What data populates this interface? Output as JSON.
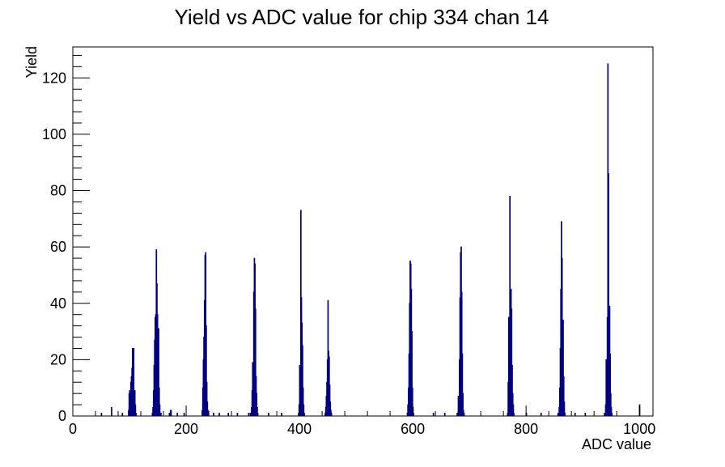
{
  "chart_data": {
    "type": "bar",
    "title": "Yield vs ADC value for chip 334 chan 14",
    "xlabel": "ADC value",
    "ylabel": "Yield",
    "xlim": [
      0,
      1024
    ],
    "ylim": [
      0,
      131
    ],
    "x_ticks": [
      0,
      200,
      400,
      600,
      800,
      1000
    ],
    "y_ticks": [
      0,
      20,
      40,
      60,
      80,
      100,
      120
    ],
    "series_color": "#000080",
    "grid": false,
    "legend": "none",
    "bins": [
      {
        "x": 50,
        "y": 1
      },
      {
        "x": 68,
        "y": 3
      },
      {
        "x": 87,
        "y": 1
      },
      {
        "x": 98,
        "y": 2
      },
      {
        "x": 99,
        "y": 8
      },
      {
        "x": 100,
        "y": 9
      },
      {
        "x": 101,
        "y": 7
      },
      {
        "x": 102,
        "y": 12
      },
      {
        "x": 103,
        "y": 14
      },
      {
        "x": 104,
        "y": 17
      },
      {
        "x": 105,
        "y": 24
      },
      {
        "x": 106,
        "y": 14
      },
      {
        "x": 107,
        "y": 24
      },
      {
        "x": 108,
        "y": 5
      },
      {
        "x": 109,
        "y": 9
      },
      {
        "x": 110,
        "y": 4
      },
      {
        "x": 111,
        "y": 1
      },
      {
        "x": 140,
        "y": 1
      },
      {
        "x": 141,
        "y": 3
      },
      {
        "x": 142,
        "y": 9
      },
      {
        "x": 143,
        "y": 18
      },
      {
        "x": 144,
        "y": 27
      },
      {
        "x": 145,
        "y": 35
      },
      {
        "x": 146,
        "y": 36
      },
      {
        "x": 147,
        "y": 59
      },
      {
        "x": 148,
        "y": 47
      },
      {
        "x": 149,
        "y": 36
      },
      {
        "x": 150,
        "y": 31
      },
      {
        "x": 151,
        "y": 31
      },
      {
        "x": 152,
        "y": 10
      },
      {
        "x": 153,
        "y": 4
      },
      {
        "x": 154,
        "y": 1
      },
      {
        "x": 155,
        "y": 1
      },
      {
        "x": 170,
        "y": 1
      },
      {
        "x": 172,
        "y": 2
      },
      {
        "x": 173,
        "y": 2
      },
      {
        "x": 184,
        "y": 1
      },
      {
        "x": 196,
        "y": 1
      },
      {
        "x": 228,
        "y": 2
      },
      {
        "x": 229,
        "y": 10
      },
      {
        "x": 230,
        "y": 20
      },
      {
        "x": 231,
        "y": 28
      },
      {
        "x": 232,
        "y": 41
      },
      {
        "x": 233,
        "y": 57
      },
      {
        "x": 234,
        "y": 58
      },
      {
        "x": 235,
        "y": 32
      },
      {
        "x": 236,
        "y": 12
      },
      {
        "x": 237,
        "y": 5
      },
      {
        "x": 238,
        "y": 2
      },
      {
        "x": 248,
        "y": 1
      },
      {
        "x": 258,
        "y": 1
      },
      {
        "x": 274,
        "y": 1
      },
      {
        "x": 290,
        "y": 1
      },
      {
        "x": 310,
        "y": 1
      },
      {
        "x": 313,
        "y": 1
      },
      {
        "x": 315,
        "y": 3
      },
      {
        "x": 316,
        "y": 9
      },
      {
        "x": 317,
        "y": 19
      },
      {
        "x": 318,
        "y": 16
      },
      {
        "x": 319,
        "y": 44
      },
      {
        "x": 320,
        "y": 56
      },
      {
        "x": 321,
        "y": 54
      },
      {
        "x": 322,
        "y": 38
      },
      {
        "x": 323,
        "y": 14
      },
      {
        "x": 324,
        "y": 8
      },
      {
        "x": 325,
        "y": 3
      },
      {
        "x": 326,
        "y": 1
      },
      {
        "x": 345,
        "y": 1
      },
      {
        "x": 368,
        "y": 1
      },
      {
        "x": 398,
        "y": 1
      },
      {
        "x": 399,
        "y": 4
      },
      {
        "x": 400,
        "y": 18
      },
      {
        "x": 401,
        "y": 17
      },
      {
        "x": 402,
        "y": 73
      },
      {
        "x": 403,
        "y": 42
      },
      {
        "x": 404,
        "y": 33
      },
      {
        "x": 405,
        "y": 25
      },
      {
        "x": 406,
        "y": 10
      },
      {
        "x": 407,
        "y": 4
      },
      {
        "x": 408,
        "y": 1
      },
      {
        "x": 445,
        "y": 1
      },
      {
        "x": 446,
        "y": 3
      },
      {
        "x": 447,
        "y": 7
      },
      {
        "x": 448,
        "y": 12
      },
      {
        "x": 449,
        "y": 20
      },
      {
        "x": 450,
        "y": 41
      },
      {
        "x": 451,
        "y": 23
      },
      {
        "x": 452,
        "y": 21
      },
      {
        "x": 453,
        "y": 11
      },
      {
        "x": 454,
        "y": 5
      },
      {
        "x": 455,
        "y": 2
      },
      {
        "x": 456,
        "y": 1
      },
      {
        "x": 590,
        "y": 1
      },
      {
        "x": 591,
        "y": 4
      },
      {
        "x": 592,
        "y": 10
      },
      {
        "x": 593,
        "y": 22
      },
      {
        "x": 594,
        "y": 40
      },
      {
        "x": 595,
        "y": 55
      },
      {
        "x": 596,
        "y": 54
      },
      {
        "x": 597,
        "y": 45
      },
      {
        "x": 598,
        "y": 30
      },
      {
        "x": 599,
        "y": 10
      },
      {
        "x": 600,
        "y": 3
      },
      {
        "x": 601,
        "y": 1
      },
      {
        "x": 636,
        "y": 1
      },
      {
        "x": 656,
        "y": 1
      },
      {
        "x": 678,
        "y": 1
      },
      {
        "x": 680,
        "y": 7
      },
      {
        "x": 681,
        "y": 2
      },
      {
        "x": 682,
        "y": 20
      },
      {
        "x": 683,
        "y": 42
      },
      {
        "x": 684,
        "y": 58
      },
      {
        "x": 685,
        "y": 60
      },
      {
        "x": 686,
        "y": 44
      },
      {
        "x": 687,
        "y": 22
      },
      {
        "x": 688,
        "y": 8
      },
      {
        "x": 689,
        "y": 2
      },
      {
        "x": 690,
        "y": 1
      },
      {
        "x": 767,
        "y": 1
      },
      {
        "x": 768,
        "y": 12
      },
      {
        "x": 769,
        "y": 35
      },
      {
        "x": 770,
        "y": 25
      },
      {
        "x": 771,
        "y": 78
      },
      {
        "x": 772,
        "y": 40
      },
      {
        "x": 773,
        "y": 45
      },
      {
        "x": 774,
        "y": 38
      },
      {
        "x": 775,
        "y": 18
      },
      {
        "x": 776,
        "y": 8
      },
      {
        "x": 777,
        "y": 4
      },
      {
        "x": 778,
        "y": 1
      },
      {
        "x": 800,
        "y": 1
      },
      {
        "x": 826,
        "y": 1
      },
      {
        "x": 856,
        "y": 1
      },
      {
        "x": 858,
        "y": 3
      },
      {
        "x": 859,
        "y": 10
      },
      {
        "x": 860,
        "y": 24
      },
      {
        "x": 861,
        "y": 45
      },
      {
        "x": 862,
        "y": 69
      },
      {
        "x": 863,
        "y": 56
      },
      {
        "x": 864,
        "y": 34
      },
      {
        "x": 865,
        "y": 34
      },
      {
        "x": 866,
        "y": 14
      },
      {
        "x": 867,
        "y": 5
      },
      {
        "x": 868,
        "y": 1
      },
      {
        "x": 886,
        "y": 1
      },
      {
        "x": 904,
        "y": 1
      },
      {
        "x": 938,
        "y": 1
      },
      {
        "x": 940,
        "y": 4
      },
      {
        "x": 941,
        "y": 20
      },
      {
        "x": 942,
        "y": 17
      },
      {
        "x": 943,
        "y": 35
      },
      {
        "x": 944,
        "y": 125
      },
      {
        "x": 945,
        "y": 86
      },
      {
        "x": 946,
        "y": 17
      },
      {
        "x": 947,
        "y": 39
      },
      {
        "x": 948,
        "y": 22
      },
      {
        "x": 949,
        "y": 8
      },
      {
        "x": 950,
        "y": 3
      },
      {
        "x": 951,
        "y": 1
      },
      {
        "x": 1000,
        "y": 4
      }
    ]
  }
}
